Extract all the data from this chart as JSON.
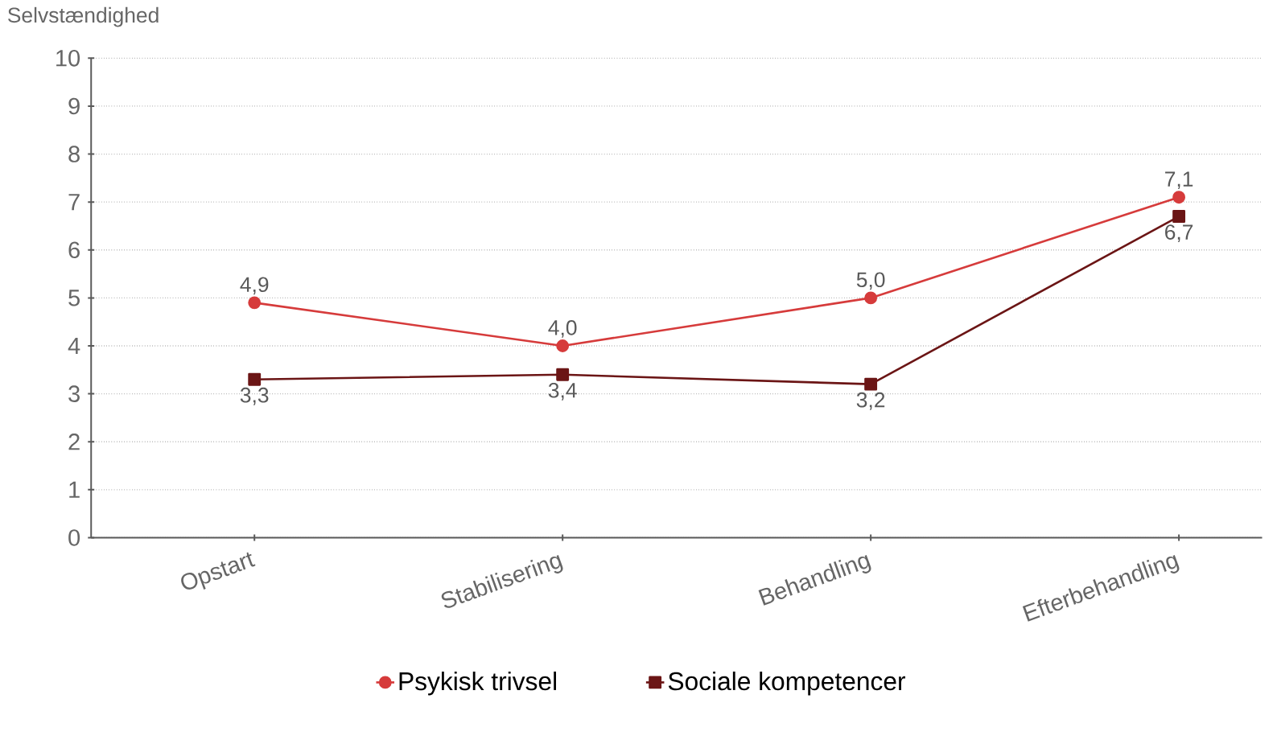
{
  "chart_data": {
    "type": "line",
    "ylabel": "Selvstændighed",
    "categories": [
      "Opstart",
      "Stabilisering",
      "Behandling",
      "Efterbehandling"
    ],
    "series": [
      {
        "name": "Psykisk trivsel",
        "color": "#d63b3b",
        "values": [
          4.9,
          4.0,
          5.0,
          7.1
        ],
        "value_labels": [
          "4,9",
          "4,0",
          "5,0",
          "7,1"
        ],
        "marker": "circle"
      },
      {
        "name": "Sociale kompetencer",
        "color": "#6b1515",
        "values": [
          3.3,
          3.4,
          3.2,
          6.7
        ],
        "value_labels": [
          "3,3",
          "3,4",
          "3,2",
          "6,7"
        ],
        "marker": "square"
      }
    ],
    "ylim": [
      0,
      10
    ],
    "yticks": [
      0,
      1,
      2,
      3,
      4,
      5,
      6,
      7,
      8,
      9,
      10
    ],
    "grid": "y",
    "legend": "bottom",
    "line_style": "solid"
  }
}
